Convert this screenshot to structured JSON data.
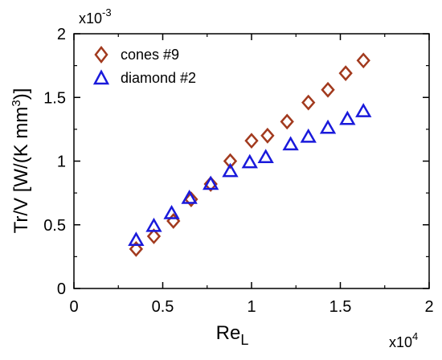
{
  "chart_data": {
    "type": "scatter",
    "xlabel_main": "Re",
    "xlabel_sub": "L",
    "ylabel_parts": [
      "Tr/V [W/(K mm",
      "3",
      ")]"
    ],
    "x_multiplier": {
      "base": "x10",
      "exp": "4"
    },
    "y_multiplier": {
      "base": "x10",
      "exp": "-3"
    },
    "xlim": [
      0,
      2
    ],
    "ylim": [
      0,
      2
    ],
    "x_ticks": [
      0,
      0.5,
      1,
      1.5,
      2
    ],
    "x_tick_labels": [
      "0",
      "0.5",
      "1",
      "1.5",
      "2"
    ],
    "y_ticks": [
      0,
      0.5,
      1,
      1.5,
      2
    ],
    "y_tick_labels": [
      "0",
      "0.5",
      "1",
      "1.5",
      "2"
    ],
    "legend_position": "top-left",
    "grid": false,
    "series": [
      {
        "name": "cones #9",
        "marker": "diamond",
        "color": "#a23a1e",
        "x": [
          0.35,
          0.45,
          0.56,
          0.66,
          0.77,
          0.88,
          1.0,
          1.09,
          1.2,
          1.32,
          1.43,
          1.53,
          1.63
        ],
        "y": [
          0.31,
          0.41,
          0.53,
          0.7,
          0.82,
          1.0,
          1.16,
          1.2,
          1.31,
          1.46,
          1.56,
          1.69,
          1.79
        ]
      },
      {
        "name": "diamond #2",
        "marker": "triangle",
        "color": "#1a1adb",
        "x": [
          0.35,
          0.45,
          0.55,
          0.65,
          0.77,
          0.88,
          0.99,
          1.08,
          1.22,
          1.32,
          1.43,
          1.54,
          1.63
        ],
        "y": [
          0.38,
          0.49,
          0.59,
          0.71,
          0.82,
          0.92,
          0.99,
          1.03,
          1.13,
          1.19,
          1.26,
          1.33,
          1.39
        ]
      }
    ]
  }
}
